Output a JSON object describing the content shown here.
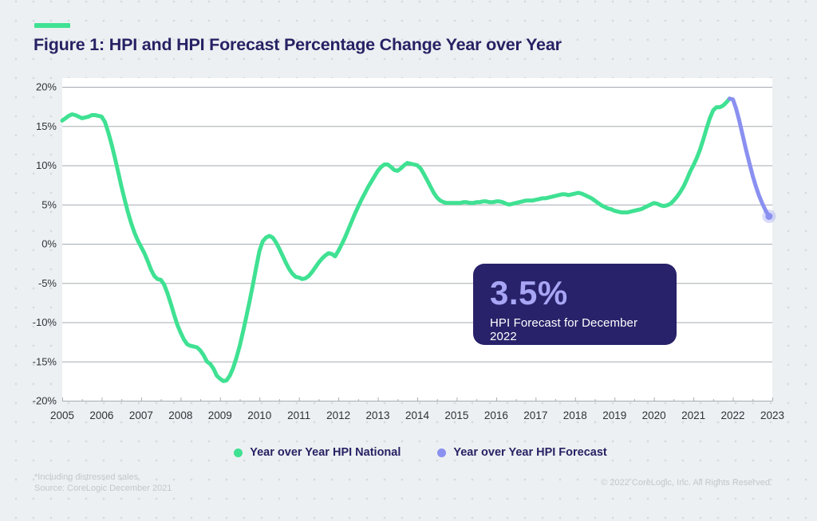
{
  "page": {
    "title": "Figure 1: HPI and HPI Forecast Percentage Change Year over Year",
    "footnote_line1": "*Including distressed sales",
    "footnote_line2": "Source: CoreLogic December 2021",
    "copyright": "© 2022 CoreLogic, Inc. All Rights Reserved."
  },
  "colors": {
    "accent_green": "#3FE192",
    "forecast_purple": "#8A90F0",
    "forecast_halo": "rgba(138,144,240,0.32)",
    "navy": "#262264",
    "callout_bg": "#28226A",
    "callout_value": "#A7A5F4",
    "grid": "#A6ABB1",
    "axis_text": "#2E3237",
    "muted_text": "#C2C7CB",
    "page_bg": "#EDF0F2",
    "plot_bg": "#FFFFFF"
  },
  "callout": {
    "value": "3.5%",
    "label": "HPI Forecast for December 2022"
  },
  "legend": [
    {
      "label": "Year over Year HPI National",
      "color": "#3FE192"
    },
    {
      "label": "Year over Year HPI Forecast",
      "color": "#8A90F0"
    }
  ],
  "chart_data": {
    "type": "line",
    "title": "Figure 1: HPI and HPI Forecast Percentage Change Year over Year",
    "xlabel": "",
    "ylabel": "",
    "xlim": [
      2005,
      2023
    ],
    "ylim": [
      -20,
      20
    ],
    "grid": "horizontal",
    "legend_position": "bottom-center",
    "y_ticks": [
      20,
      15,
      10,
      5,
      0,
      -5,
      -10,
      -15,
      -20
    ],
    "y_tick_labels": [
      "20%",
      "15%",
      "10%",
      "5%",
      "0%",
      "-5%",
      "-10%",
      "-15%",
      "-20%"
    ],
    "x_ticks": [
      2005,
      2006,
      2007,
      2008,
      2009,
      2010,
      2011,
      2012,
      2013,
      2014,
      2015,
      2016,
      2017,
      2018,
      2019,
      2020,
      2021,
      2022,
      2023
    ],
    "annotation": {
      "value": "3.5%",
      "label": "HPI Forecast for December 2022"
    },
    "series": [
      {
        "name": "Year over Year HPI National",
        "slug": "hpi-national-line",
        "color": "#3FE192",
        "interval": "monthly",
        "start_year": 2005,
        "start_month": 1,
        "connect_to_previous": false,
        "end_marker": false,
        "values": [
          15.7,
          16.0,
          16.3,
          16.5,
          16.4,
          16.2,
          16.0,
          16.1,
          16.2,
          16.4,
          16.4,
          16.3,
          16.2,
          15.5,
          14.2,
          12.7,
          11.0,
          9.2,
          7.3,
          5.6,
          4.0,
          2.6,
          1.4,
          0.4,
          -0.4,
          -1.2,
          -2.2,
          -3.3,
          -4.1,
          -4.5,
          -4.6,
          -5.2,
          -6.3,
          -7.6,
          -9.0,
          -10.3,
          -11.3,
          -12.2,
          -12.8,
          -13.0,
          -13.1,
          -13.2,
          -13.6,
          -14.2,
          -15.0,
          -15.3,
          -15.9,
          -16.8,
          -17.2,
          -17.5,
          -17.4,
          -16.8,
          -15.8,
          -14.5,
          -13.0,
          -11.2,
          -9.3,
          -7.3,
          -5.2,
          -3.0,
          -0.9,
          0.3,
          0.8,
          1.0,
          0.8,
          0.2,
          -0.6,
          -1.5,
          -2.4,
          -3.2,
          -3.8,
          -4.2,
          -4.3,
          -4.5,
          -4.4,
          -4.1,
          -3.6,
          -3.0,
          -2.4,
          -1.9,
          -1.5,
          -1.2,
          -1.3,
          -1.6,
          -0.9,
          -0.1,
          0.8,
          1.8,
          2.8,
          3.8,
          4.7,
          5.6,
          6.4,
          7.2,
          7.9,
          8.6,
          9.3,
          9.8,
          10.1,
          10.1,
          9.8,
          9.4,
          9.3,
          9.6,
          10.0,
          10.3,
          10.2,
          10.1,
          10.0,
          9.6,
          8.9,
          8.1,
          7.3,
          6.5,
          5.9,
          5.5,
          5.3,
          5.2,
          5.2,
          5.2,
          5.2,
          5.2,
          5.3,
          5.3,
          5.2,
          5.2,
          5.3,
          5.3,
          5.4,
          5.4,
          5.3,
          5.3,
          5.4,
          5.4,
          5.3,
          5.1,
          5.0,
          5.1,
          5.2,
          5.3,
          5.4,
          5.5,
          5.5,
          5.5,
          5.6,
          5.7,
          5.8,
          5.8,
          5.9,
          6.0,
          6.1,
          6.2,
          6.3,
          6.3,
          6.2,
          6.3,
          6.4,
          6.5,
          6.4,
          6.2,
          6.0,
          5.8,
          5.5,
          5.2,
          4.9,
          4.7,
          4.5,
          4.4,
          4.2,
          4.1,
          4.0,
          4.0,
          4.0,
          4.1,
          4.2,
          4.3,
          4.4,
          4.6,
          4.8,
          5.0,
          5.2,
          5.1,
          4.9,
          4.8,
          4.9,
          5.1,
          5.5,
          6.0,
          6.6,
          7.3,
          8.2,
          9.2,
          10.0,
          10.9,
          12.0,
          13.3,
          14.7,
          16.0,
          17.0,
          17.4,
          17.4,
          17.6,
          18.0,
          18.5
        ]
      },
      {
        "name": "Year over Year HPI Forecast",
        "slug": "hpi-forecast-line",
        "color": "#8A90F0",
        "interval": "monthly",
        "start_year": 2022,
        "start_month": 1,
        "connect_to_previous": true,
        "end_marker": true,
        "values": [
          18.4,
          17.2,
          15.6,
          13.8,
          12.0,
          10.3,
          8.7,
          7.3,
          6.1,
          5.1,
          4.2,
          3.5
        ]
      }
    ]
  }
}
